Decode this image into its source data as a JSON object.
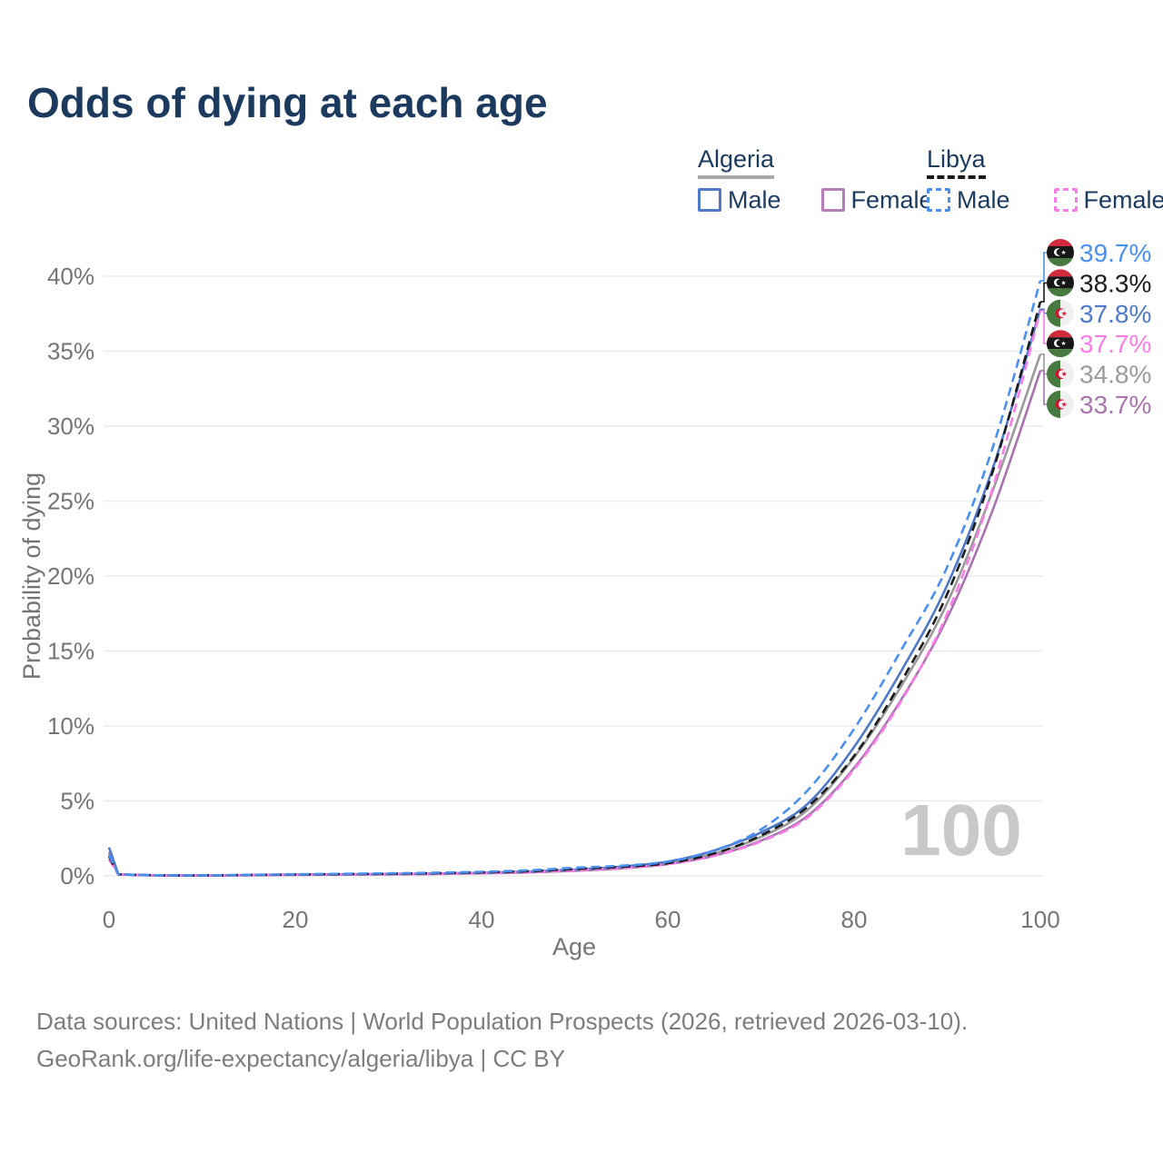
{
  "title": "Odds of dying at each age",
  "watermark": "100",
  "legend": {
    "groups": [
      {
        "name": "Algeria",
        "line_style": "solid",
        "underline_color": "#a8a8a8",
        "items": [
          {
            "label": "Male",
            "color": "#4e79c9"
          },
          {
            "label": "Female",
            "color": "#b47cb8"
          }
        ]
      },
      {
        "name": "Libya",
        "line_style": "dashed",
        "underline_color": "#1a1a1a",
        "items": [
          {
            "label": "Male",
            "color": "#4a90f2"
          },
          {
            "label": "Female",
            "color": "#fb7ce8"
          }
        ]
      }
    ]
  },
  "footer": {
    "line1": "Data sources: United Nations | World Population Prospects (2026, retrieved 2026-03-10).",
    "line2": "GeoRank.org/life-expectancy/algeria/libya | CC BY"
  },
  "chart_data": {
    "type": "line",
    "title": "Odds of dying at each age",
    "xlabel": "Age",
    "ylabel": "Probability of dying",
    "xlim": [
      0,
      100
    ],
    "ylim_percent": [
      0,
      42
    ],
    "grid": true,
    "legend_position": "top-right",
    "x_ticks": [
      0,
      20,
      40,
      60,
      80,
      100
    ],
    "y_ticks_percent": [
      0,
      5,
      10,
      15,
      20,
      25,
      30,
      35,
      40
    ],
    "y_tick_labels": [
      "0%",
      "5%",
      "10%",
      "15%",
      "20%",
      "25%",
      "30%",
      "35%",
      "40%"
    ],
    "hovered_age": "100",
    "x": [
      0,
      1,
      5,
      10,
      15,
      20,
      25,
      30,
      35,
      40,
      45,
      50,
      55,
      60,
      65,
      70,
      75,
      80,
      85,
      90,
      95,
      100
    ],
    "series": [
      {
        "name": "Algeria Both sexes",
        "country": "Algeria",
        "sex": "Both",
        "color": "#9a9a9a",
        "dashed": false,
        "flag": "algeria",
        "end_label": "34.8%",
        "values": [
          1.6,
          0.095,
          0.038,
          0.028,
          0.05,
          0.08,
          0.1,
          0.12,
          0.15,
          0.19,
          0.26,
          0.38,
          0.56,
          0.86,
          1.5,
          2.6,
          4.4,
          7.9,
          12.6,
          18.2,
          25.9,
          34.8
        ]
      },
      {
        "name": "Algeria Female",
        "country": "Algeria",
        "sex": "Female",
        "color": "#a873ae",
        "dashed": false,
        "flag": "algeria",
        "end_label": "33.7%",
        "values": [
          1.45,
          0.09,
          0.035,
          0.027,
          0.045,
          0.065,
          0.085,
          0.1,
          0.13,
          0.17,
          0.23,
          0.34,
          0.5,
          0.78,
          1.35,
          2.35,
          4.0,
          7.2,
          11.7,
          17.2,
          24.6,
          33.7
        ]
      },
      {
        "name": "Algeria Male",
        "country": "Algeria",
        "sex": "Male",
        "color": "#4e79c9",
        "dashed": false,
        "flag": "algeria",
        "end_label": "37.8%",
        "values": [
          1.9,
          0.1,
          0.04,
          0.03,
          0.06,
          0.09,
          0.11,
          0.13,
          0.16,
          0.21,
          0.29,
          0.42,
          0.62,
          0.95,
          1.7,
          2.9,
          4.8,
          8.6,
          13.6,
          19.4,
          27.4,
          37.8
        ]
      },
      {
        "name": "Libya Female",
        "country": "Libya",
        "sex": "Female",
        "color": "#fb7ce8",
        "dashed": true,
        "flag": "libya",
        "end_label": "37.7%",
        "values": [
          1.1,
          0.085,
          0.035,
          0.027,
          0.05,
          0.075,
          0.095,
          0.115,
          0.145,
          0.185,
          0.25,
          0.37,
          0.52,
          0.78,
          1.35,
          2.3,
          3.9,
          7.1,
          11.6,
          17.5,
          26.1,
          37.7
        ]
      },
      {
        "name": "Libya Both sexes",
        "country": "Libya",
        "sex": "Both",
        "color": "#1c1c1c",
        "dashed": true,
        "flag": "libya",
        "end_label": "38.3%",
        "values": [
          1.3,
          0.095,
          0.04,
          0.03,
          0.06,
          0.09,
          0.12,
          0.14,
          0.18,
          0.23,
          0.31,
          0.46,
          0.6,
          0.85,
          1.5,
          2.7,
          4.6,
          8.0,
          12.9,
          18.8,
          27.2,
          38.3
        ]
      },
      {
        "name": "Libya Male",
        "country": "Libya",
        "sex": "Male",
        "color": "#4a90f2",
        "dashed": true,
        "flag": "libya",
        "end_label": "39.7%",
        "values": [
          1.4,
          0.1,
          0.045,
          0.035,
          0.07,
          0.11,
          0.14,
          0.17,
          0.21,
          0.27,
          0.37,
          0.54,
          0.68,
          0.95,
          1.7,
          3.1,
          5.7,
          9.8,
          15.0,
          20.6,
          28.8,
          39.7
        ]
      }
    ]
  }
}
